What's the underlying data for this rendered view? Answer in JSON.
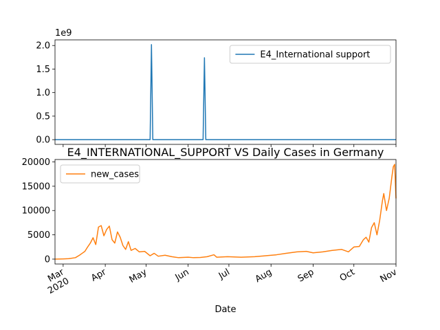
{
  "chart_data": [
    {
      "type": "line",
      "title": "",
      "xlabel": "",
      "ylabel": "",
      "offset_label": "1e9",
      "ylim": [
        -0.1,
        2.12
      ],
      "yticks": [
        0.0,
        0.5,
        1.0,
        1.5,
        2.0
      ],
      "ytick_labels": [
        "0.0",
        "0.5",
        "1.0",
        "1.5",
        "2.0"
      ],
      "legend_position": "upper-right",
      "series": [
        {
          "name": "E4_International support",
          "color": "#1f77b4",
          "points": [
            [
              "2020-02-24",
              0
            ],
            [
              "2020-05-04",
              0
            ],
            [
              "2020-05-05",
              2.02
            ],
            [
              "2020-05-06",
              0
            ],
            [
              "2020-06-12",
              0
            ],
            [
              "2020-06-13",
              1.74
            ],
            [
              "2020-06-14",
              0
            ],
            [
              "2020-11-01",
              0
            ]
          ]
        }
      ]
    },
    {
      "type": "line",
      "title": "E4_INTERNATIONAL_SUPPORT VS Daily Cases in Germany",
      "xlabel": "Date",
      "ylabel": "",
      "ylim": [
        -1000,
        20500
      ],
      "yticks": [
        0,
        5000,
        10000,
        15000,
        20000
      ],
      "ytick_labels": [
        "0",
        "5000",
        "10000",
        "15000",
        "20000"
      ],
      "xlim": [
        "2020-02-24",
        "2020-11-01"
      ],
      "xticks": [
        "2020-03-01",
        "2020-04-01",
        "2020-05-01",
        "2020-06-01",
        "2020-07-01",
        "2020-08-01",
        "2020-09-01",
        "2020-10-01",
        "2020-11-01"
      ],
      "xtick_labels": [
        "Mar\n2020",
        "Apr",
        "May",
        "Jun",
        "Jul",
        "Aug",
        "Sep",
        "Oct",
        "Nov"
      ],
      "legend_position": "upper-left",
      "series": [
        {
          "name": "new_cases",
          "color": "#ff7f0e",
          "points": [
            [
              "2020-02-24",
              0
            ],
            [
              "2020-03-01",
              50
            ],
            [
              "2020-03-05",
              100
            ],
            [
              "2020-03-10",
              300
            ],
            [
              "2020-03-13",
              800
            ],
            [
              "2020-03-15",
              1200
            ],
            [
              "2020-03-17",
              1600
            ],
            [
              "2020-03-19",
              2500
            ],
            [
              "2020-03-21",
              3300
            ],
            [
              "2020-03-23",
              4400
            ],
            [
              "2020-03-25",
              3000
            ],
            [
              "2020-03-27",
              6600
            ],
            [
              "2020-03-29",
              6900
            ],
            [
              "2020-03-31",
              4800
            ],
            [
              "2020-04-02",
              6100
            ],
            [
              "2020-04-04",
              6800
            ],
            [
              "2020-04-06",
              4000
            ],
            [
              "2020-04-08",
              3300
            ],
            [
              "2020-04-10",
              5600
            ],
            [
              "2020-04-12",
              4500
            ],
            [
              "2020-04-14",
              2800
            ],
            [
              "2020-04-16",
              2000
            ],
            [
              "2020-04-18",
              3600
            ],
            [
              "2020-04-20",
              1800
            ],
            [
              "2020-04-23",
              2200
            ],
            [
              "2020-04-26",
              1500
            ],
            [
              "2020-04-30",
              1600
            ],
            [
              "2020-05-04",
              700
            ],
            [
              "2020-05-07",
              1200
            ],
            [
              "2020-05-10",
              600
            ],
            [
              "2020-05-15",
              800
            ],
            [
              "2020-05-20",
              500
            ],
            [
              "2020-05-25",
              300
            ],
            [
              "2020-06-01",
              400
            ],
            [
              "2020-06-05",
              300
            ],
            [
              "2020-06-10",
              350
            ],
            [
              "2020-06-15",
              500
            ],
            [
              "2020-06-20",
              900
            ],
            [
              "2020-06-22",
              400
            ],
            [
              "2020-06-30",
              500
            ],
            [
              "2020-07-10",
              400
            ],
            [
              "2020-07-20",
              500
            ],
            [
              "2020-07-28",
              700
            ],
            [
              "2020-08-05",
              900
            ],
            [
              "2020-08-12",
              1200
            ],
            [
              "2020-08-20",
              1500
            ],
            [
              "2020-08-27",
              1600
            ],
            [
              "2020-09-01",
              1300
            ],
            [
              "2020-09-08",
              1500
            ],
            [
              "2020-09-15",
              1800
            ],
            [
              "2020-09-22",
              2000
            ],
            [
              "2020-09-27",
              1500
            ],
            [
              "2020-10-01",
              2500
            ],
            [
              "2020-10-05",
              2600
            ],
            [
              "2020-10-08",
              4000
            ],
            [
              "2020-10-10",
              4500
            ],
            [
              "2020-10-12",
              3500
            ],
            [
              "2020-10-14",
              6500
            ],
            [
              "2020-10-16",
              7500
            ],
            [
              "2020-10-18",
              5000
            ],
            [
              "2020-10-20",
              8000
            ],
            [
              "2020-10-22",
              12000
            ],
            [
              "2020-10-23",
              13500
            ],
            [
              "2020-10-25",
              10000
            ],
            [
              "2020-10-27",
              12500
            ],
            [
              "2020-10-29",
              17000
            ],
            [
              "2020-10-30",
              19000
            ],
            [
              "2020-10-31",
              19500
            ],
            [
              "2020-11-01",
              12500
            ]
          ]
        }
      ]
    }
  ]
}
